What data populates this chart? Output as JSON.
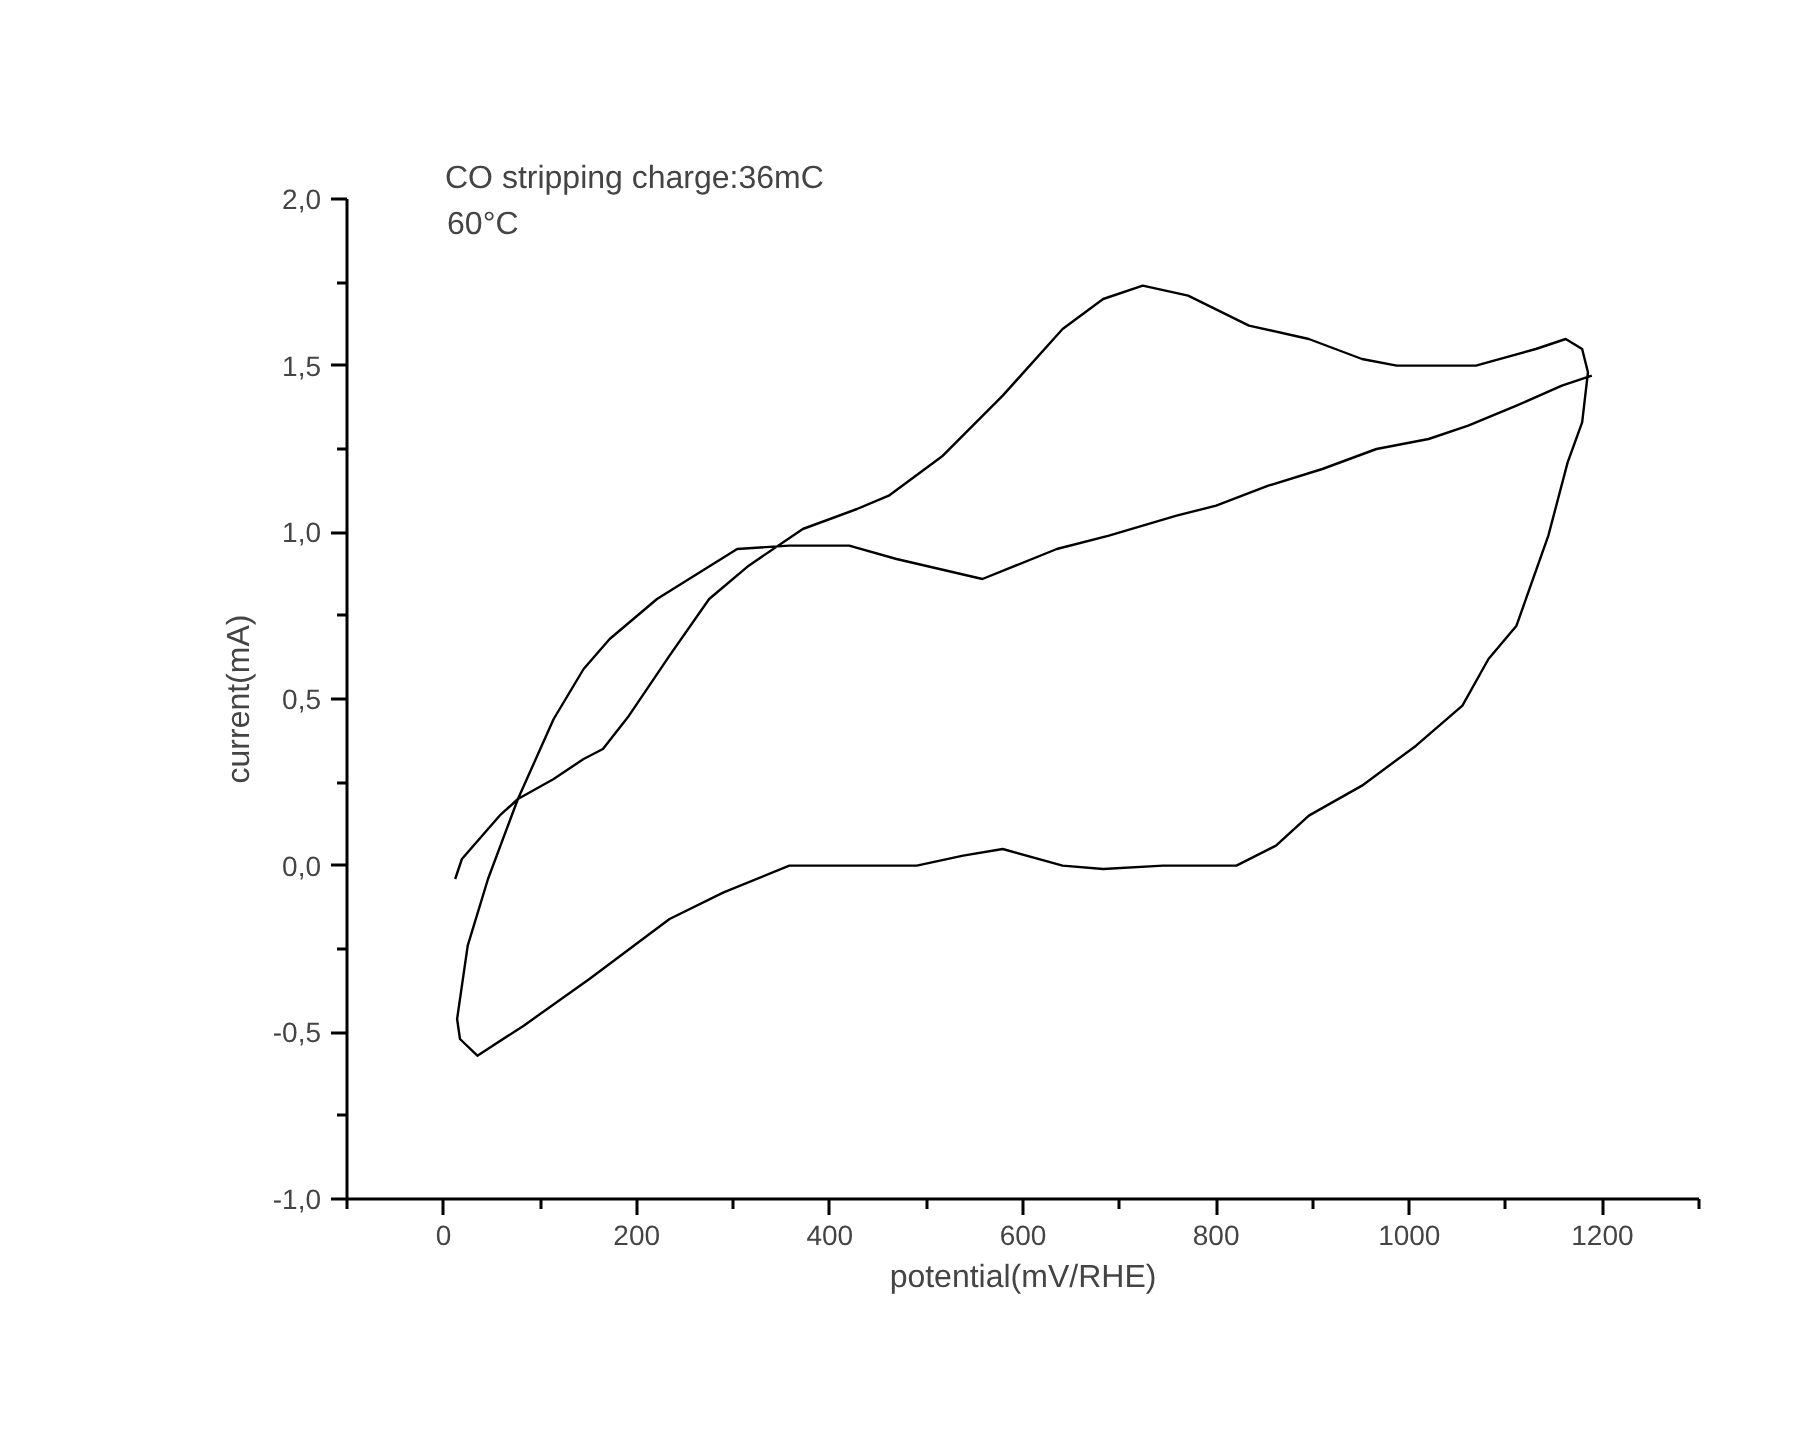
{
  "chart_data": {
    "type": "line",
    "xlabel": "potential(mV/RHE)",
    "ylabel": "current(mA)",
    "annotations": [
      "CO stripping charge:36mC",
      "60°C"
    ],
    "xlim": [
      -100,
      1300
    ],
    "ylim": [
      -1,
      2
    ],
    "xticks": [
      {
        "value": -100,
        "label": null
      },
      0,
      {
        "value": 100,
        "label": null
      },
      200,
      {
        "value": 300,
        "label": null
      },
      400,
      {
        "value": 500,
        "label": null
      },
      600,
      {
        "value": 700,
        "label": null
      },
      800,
      {
        "value": 900,
        "label": null
      },
      1000,
      {
        "value": 1100,
        "label": null
      },
      1200,
      {
        "value": 1300,
        "label": null
      }
    ],
    "yticks": [
      {
        "value": -1,
        "label": "-1,0"
      },
      {
        "value": -0.75,
        "label": null
      },
      {
        "value": -0.5,
        "label": "-0,5"
      },
      {
        "value": -0.25,
        "label": null
      },
      {
        "value": 0,
        "label": "0,0"
      },
      {
        "value": 0.25,
        "label": null
      },
      {
        "value": 0.5,
        "label": "0,5"
      },
      {
        "value": 0.75,
        "label": null
      },
      {
        "value": 1,
        "label": "1,0"
      },
      {
        "value": 1.25,
        "label": null
      },
      {
        "value": 1.5,
        "label": "1,5"
      },
      {
        "value": 1.75,
        "label": null
      },
      {
        "value": 2,
        "label": "2,0"
      }
    ],
    "grid": false,
    "marker": "none",
    "line_style": "solid",
    "series": [
      {
        "color": "#000000",
        "x": [
          12,
          19,
          37,
          58,
          77,
          114,
          145,
          165,
          192,
          234,
          275,
          316,
          372,
          428,
          461,
          517,
          579,
          641,
          683,
          724,
          771,
          834,
          896,
          951,
          987,
          1069,
          1131,
          1162,
          1179,
          1185,
          1179,
          1164,
          1144,
          1111,
          1082,
          1055,
          1007,
          951,
          896,
          862,
          821,
          745,
          683,
          641,
          579,
          538,
          490,
          358,
          290,
          234,
          151,
          83,
          35,
          17,
          14,
          25,
          46,
          77,
          114,
          145,
          172,
          221,
          304,
          358,
          420,
          469,
          558,
          635,
          689,
          759,
          800,
          854,
          910,
          966,
          1020,
          1061,
          1111,
          1158,
          1189
        ],
        "values": [
          -0.04,
          0.02,
          0.08,
          0.15,
          0.2,
          0.26,
          0.32,
          0.35,
          0.45,
          0.63,
          0.8,
          0.9,
          1.01,
          1.07,
          1.11,
          1.23,
          1.41,
          1.61,
          1.7,
          1.74,
          1.71,
          1.62,
          1.58,
          1.52,
          1.5,
          1.5,
          1.55,
          1.58,
          1.55,
          1.48,
          1.33,
          1.21,
          0.99,
          0.72,
          0.62,
          0.48,
          0.36,
          0.24,
          0.15,
          0.06,
          0.0,
          0.0,
          -0.01,
          0.0,
          0.05,
          0.03,
          0.0,
          0.0,
          -0.08,
          -0.16,
          -0.34,
          -0.48,
          -0.57,
          -0.52,
          -0.46,
          -0.24,
          -0.04,
          0.2,
          0.44,
          0.59,
          0.68,
          0.8,
          0.95,
          0.96,
          0.96,
          0.92,
          0.86,
          0.95,
          0.99,
          1.05,
          1.08,
          1.14,
          1.19,
          1.25,
          1.28,
          1.32,
          1.38,
          1.44,
          1.47
        ]
      }
    ]
  }
}
